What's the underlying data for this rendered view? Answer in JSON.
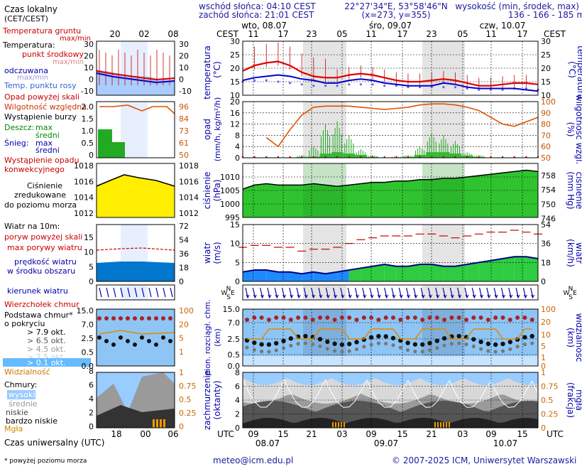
{
  "header": {
    "sunrise": "wschód słońca: 04:10 CEST",
    "sunset": "zachód słońca: 21:01 CEST",
    "coords": "22°27'34\"E, 53°58'46\"N",
    "grid": "(x=273, y=355)",
    "elevation_label": "wysokość (min, środek, max)",
    "elevation_values": "136 - 166 - 185 m"
  },
  "legend": {
    "local_time": "Czas lokalny",
    "local_time_sub": "(CET/CEST)",
    "ground_temp": "Temperatura gruntu",
    "maxmin": "max/min",
    "temperature": "Temperatura:",
    "midpoint": "punkt środkowy",
    "maxmin2": "max/min",
    "perceived": "odczuwana",
    "maxmin3": "max/min",
    "dewpoint": "Temp. punktu rosy",
    "precip_above": "Opad powyżej skali",
    "humidity": "Wilgotność względna",
    "storm": "Wystąpienie burzy",
    "rain": "Deszcz:",
    "rain_max": "max",
    "rain_avg": "średni",
    "snow": "Śnieg:",
    "snow_max": "max",
    "snow_avg": "średni",
    "convective_1": "Wystąpienie opadu",
    "convective_2": "konwekcyjnego",
    "pressure_1": "Ciśnienie",
    "pressure_2": "zredukowane",
    "pressure_3": "do poziomu morza",
    "wind_title": "Wiatr na 10m:",
    "gust_above": "poryw powyżej skali",
    "gust_max": "max porywy wiatru",
    "wind_speed_1": "prędkość wiatru",
    "wind_speed_2": "w środku obszaru",
    "wind_dir": "kierunek wiatru",
    "vortex": "Wierzchołek chmur",
    "cloudbase_1": "Podstawa chmur*",
    "cloudbase_2": "o pokryciu",
    "okt79": "> 7.9 okt.",
    "okt65": "> 6.5 okt.",
    "okt45": "> 4.5 okt.",
    "okt25": "> 2.5 okt.",
    "okt01": "> 0.1 okt.",
    "visibility": "Widzialność",
    "clouds": "Chmury:",
    "cl_high": "wysokie",
    "cl_mid": "średnie",
    "cl_low": "niskie",
    "cl_vlow": "bardzo niskie",
    "fog": "Mgła",
    "utc": "Czas uniwersalny (UTC)",
    "footnote": "* powyżej poziomu morza"
  },
  "axis_titles": {
    "temp_left": "temperatura",
    "temp_unit": "(°C)",
    "temp_right": "(°C)",
    "precip_left_1": "opad",
    "precip_left_2": "(mm/h, kg/m²/h)",
    "humid_right_1": "(%)",
    "humid_right_2": "wilgotność wzgl.",
    "press_left_1": "ciśnienie",
    "press_left_2": "(hPa)",
    "press_right_1": "(mm Hg)",
    "press_right_2": "ciśnienie",
    "wind_left_1": "wiatr",
    "wind_left_2": "(m/s)",
    "wind_right_1": "(km/h)",
    "wind_right_2": "wiatr",
    "cloud_left_1": "pion. rozciągł. chm.",
    "cloud_left_2": "(km)",
    "cloud_right_1": "(km)",
    "cloud_right_2": "widzialność",
    "cover_left_1": "zachmurzenie",
    "cover_left_2": "(oktanty)",
    "cover_right_1": "(frakcja)",
    "cover_right_2": "mgła",
    "cest": "CEST",
    "utc": "UTC",
    "wind_rose_n": "N",
    "wind_rose_w": "W",
    "wind_rose_e": "E",
    "wind_rose_s": "S"
  },
  "footer": {
    "email": "meteo@icm.edu.pl",
    "copyright": "© 2007-2025 ICM, Uniwersytet Warszawski"
  },
  "colors": {
    "temp": "#dd0000",
    "perceived": "#0000cc",
    "dewpoint": "#6666ff",
    "humidity": "#dd5500",
    "rain": "#22aa22",
    "pressure_fill": "#33cc33",
    "wind": "#0066cc",
    "gust": "#cc0000",
    "cloud_sky": "#99ccff",
    "night": "#e8e8e8"
  },
  "chart_data": {
    "type": "meteogram",
    "x_top_local": [
      "11",
      "17",
      "23",
      "05",
      "11",
      "17",
      "23",
      "05",
      "11",
      "17"
    ],
    "x_bottom_utc": [
      "09",
      "15",
      "21",
      "03",
      "09",
      "15",
      "21",
      "03",
      "09",
      "15"
    ],
    "days_top": [
      "wto, 08.07",
      "śro, 09.07",
      "czw, 10.07"
    ],
    "days_bottom": [
      "08.07",
      "09.07",
      "10.07"
    ],
    "left_panel_top_ticks": [
      "20",
      "02",
      "08"
    ],
    "left_panel_bottom_ticks": [
      "18",
      "00",
      "06"
    ],
    "temperature": {
      "ylim": [
        10,
        30
      ],
      "yticks": [
        10,
        15,
        20,
        25,
        30
      ],
      "air": [
        19,
        21,
        22,
        22.5,
        21,
        18.5,
        17,
        16.5,
        16.5,
        17.5,
        18,
        17.5,
        16.5,
        15.5,
        15,
        15,
        15.5,
        16,
        15.5,
        14.5,
        13.5,
        13.5,
        14,
        14.5,
        14.5,
        14
      ],
      "perceived": [
        15.5,
        16.5,
        17,
        17.5,
        17,
        16,
        15.5,
        14.5,
        14.5,
        15.5,
        16,
        15.5,
        14.5,
        14,
        13.5,
        13.5,
        13.5,
        14.5,
        14,
        13,
        12.5,
        12.5,
        12.5,
        12.5,
        12,
        11.5
      ],
      "dewpoint": [
        15,
        15.5,
        15.5,
        15,
        14.5,
        14,
        13.5,
        13.5,
        13.5,
        14,
        14,
        14,
        13.5,
        13.5,
        13,
        13,
        13,
        13,
        13,
        12.5,
        12,
        12,
        12,
        12.5,
        12.5,
        12
      ]
    },
    "precipitation": {
      "ylim": [
        0,
        20
      ],
      "yticks": [
        0,
        4,
        8,
        12,
        16,
        20
      ],
      "rain_avg": [
        0,
        0,
        0,
        0,
        0,
        0.2,
        0.4,
        1.5,
        2,
        1.5,
        1,
        0.3,
        0,
        0.1,
        0.3,
        1,
        2,
        2,
        1.5,
        0.8,
        0.3,
        0,
        0,
        0,
        0,
        0
      ],
      "rain_max": [
        0,
        0,
        0,
        0,
        0,
        1,
        4,
        12,
        13,
        8,
        3,
        1,
        0,
        0.5,
        1,
        4,
        9,
        8,
        6,
        2,
        1,
        0,
        0,
        0,
        0,
        0
      ],
      "humidity": [
        null,
        null,
        68,
        60,
        75,
        88,
        95,
        96,
        96,
        96,
        95,
        94,
        93,
        94,
        95,
        97,
        98,
        98,
        97,
        95,
        92,
        86,
        80,
        78,
        82,
        86
      ],
      "humidity_ylim": [
        50,
        100
      ],
      "humidity_yticks": [
        50,
        60,
        70,
        80,
        90,
        100
      ]
    },
    "pressure": {
      "ylim": [
        995,
        1015
      ],
      "yticks": [
        995,
        1000,
        1005,
        1010
      ],
      "right_ticks_mmhg": [
        746,
        750,
        754,
        758
      ],
      "values": [
        1005.5,
        1007,
        1007.5,
        1007,
        1007,
        1007,
        1007.5,
        1007,
        1006.5,
        1007,
        1007.5,
        1008,
        1008,
        1008.5,
        1008.5,
        1009,
        1009,
        1009.5,
        1009.5,
        1010,
        1010.5,
        1011,
        1011.5,
        1012,
        1012.5,
        1012
      ]
    },
    "wind": {
      "ylim": [
        0,
        15
      ],
      "yticks": [
        0,
        5,
        10,
        15
      ],
      "right_ticks_kmh": [
        0,
        18,
        36,
        54
      ],
      "speed": [
        2.5,
        3,
        3,
        2.5,
        2.5,
        2,
        2.5,
        2,
        2.5,
        3,
        3.5,
        4,
        4.5,
        4,
        4,
        4.5,
        4.5,
        4,
        4,
        4.5,
        5,
        5.5,
        6,
        6.5,
        6.5,
        6
      ],
      "gust": [
        9,
        9.5,
        9.5,
        9,
        9,
        8,
        8.5,
        8.5,
        9,
        10,
        11,
        11.5,
        12,
        12,
        12,
        12.5,
        12.5,
        12,
        11.5,
        12,
        12.5,
        13,
        13,
        13.5,
        13,
        12.5
      ]
    },
    "cloud_top": {
      "ylim": [
        0,
        15
      ],
      "yticks": [
        0,
        0.5,
        2.5,
        7,
        15
      ],
      "right_ticks_vis": [
        0,
        1,
        5,
        10,
        20,
        100
      ]
    },
    "cloud_cover": {
      "ylim": [
        0,
        8
      ],
      "yticks": [
        0,
        2,
        4,
        6,
        8
      ],
      "right_ticks_fog": [
        "0",
        "0.25",
        "0.5",
        "0.75",
        "1"
      ]
    },
    "left_scales": {
      "temp_ticks": [
        "30",
        "20",
        "10",
        "0",
        "-10"
      ],
      "precip_ticks": [
        "2.0",
        "1.5",
        "1.0",
        "0.5",
        "0"
      ],
      "humid_ticks": [
        "96",
        "84",
        "73",
        "61",
        "50"
      ],
      "press_ticks": [
        "1018",
        "1016",
        "1014",
        "1012"
      ],
      "wind_ticks": [
        "15",
        "10",
        "5",
        "0"
      ],
      "wind_right_ticks": [
        "72",
        "54",
        "36",
        "18",
        "0"
      ],
      "cloudtop_ticks": [
        "15.0",
        "7.0",
        "2.5",
        "0.5",
        "0.0"
      ],
      "vis_ticks": [
        "100",
        "20",
        "5",
        "1"
      ],
      "cover_ticks": [
        "8",
        "6",
        "4",
        "2",
        "0"
      ],
      "fog_ticks": [
        "1",
        "0.75",
        "0.5",
        "0.25",
        "0"
      ]
    }
  }
}
